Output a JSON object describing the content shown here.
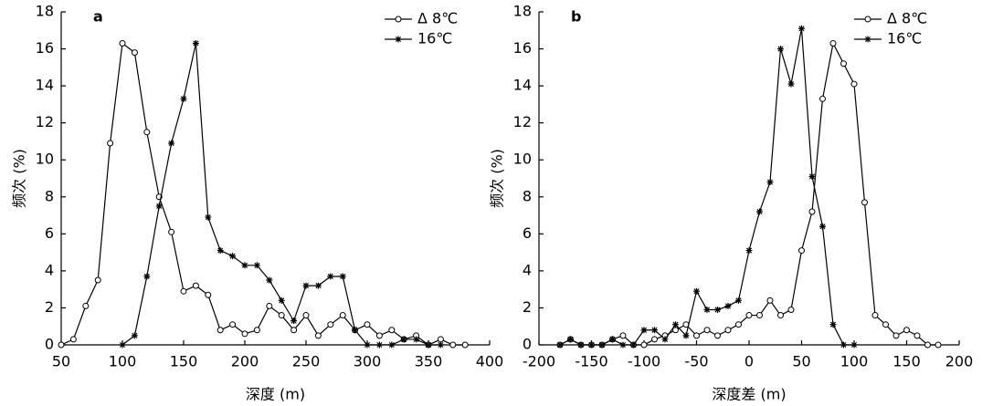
{
  "chart_data": [
    {
      "type": "line",
      "panel_label": "a",
      "xlabel": "深度 (m)",
      "ylabel": "频次 (%)",
      "xlim": [
        50,
        400
      ],
      "xticks": [
        50,
        100,
        150,
        200,
        250,
        300,
        350,
        400
      ],
      "ylim": [
        0,
        18
      ],
      "yticks": [
        0,
        2,
        4,
        6,
        8,
        10,
        12,
        14,
        16,
        18
      ],
      "legend": "upper right",
      "grid": false,
      "series": [
        {
          "name": "Δ 8℃",
          "marker": "circle",
          "color": "#000000",
          "x": [
            50,
            60,
            70,
            80,
            90,
            100,
            110,
            120,
            130,
            140,
            150,
            160,
            170,
            180,
            190,
            200,
            210,
            220,
            230,
            240,
            250,
            260,
            270,
            280,
            290,
            300,
            310,
            320,
            330,
            340,
            350,
            360,
            370,
            380
          ],
          "values": [
            0,
            0.3,
            2.1,
            3.5,
            10.9,
            16.3,
            15.8,
            11.5,
            8.0,
            6.1,
            2.9,
            3.2,
            2.7,
            0.8,
            1.1,
            0.6,
            0.8,
            2.1,
            1.6,
            0.8,
            1.6,
            0.5,
            1.1,
            1.6,
            0.8,
            1.1,
            0.5,
            0.8,
            0.3,
            0.5,
            0,
            0.3,
            0,
            0
          ]
        },
        {
          "name": "16℃",
          "marker": "star",
          "color": "#000000",
          "x": [
            100,
            110,
            120,
            130,
            140,
            150,
            160,
            170,
            180,
            190,
            200,
            210,
            220,
            230,
            240,
            250,
            260,
            270,
            280,
            290,
            300,
            310,
            320,
            330,
            340,
            350,
            360
          ],
          "values": [
            0,
            0.5,
            3.7,
            7.5,
            10.9,
            13.3,
            16.3,
            6.9,
            5.1,
            4.8,
            4.3,
            4.3,
            3.5,
            2.4,
            1.3,
            3.2,
            3.2,
            3.7,
            3.7,
            0.8,
            0,
            0,
            0,
            0.3,
            0.3,
            0,
            0
          ]
        }
      ]
    },
    {
      "type": "line",
      "panel_label": "b",
      "xlabel": "深度差 (m)",
      "ylabel": "频次 (%)",
      "xlim": [
        -200,
        200
      ],
      "xticks": [
        -200,
        -150,
        -100,
        -50,
        0,
        50,
        100,
        150,
        200
      ],
      "ylim": [
        0,
        18
      ],
      "yticks": [
        0,
        2,
        4,
        6,
        8,
        10,
        12,
        14,
        16,
        18
      ],
      "legend": "upper right",
      "grid": false,
      "series": [
        {
          "name": "Δ 8℃",
          "marker": "circle",
          "color": "#000000",
          "x": [
            -180,
            -170,
            -160,
            -150,
            -140,
            -130,
            -120,
            -110,
            -100,
            -90,
            -80,
            -70,
            -60,
            -50,
            -40,
            -30,
            -20,
            -10,
            0,
            10,
            20,
            30,
            40,
            50,
            60,
            70,
            80,
            90,
            100,
            110,
            120,
            130,
            140,
            150,
            160,
            170,
            180
          ],
          "values": [
            0,
            0.3,
            0,
            0,
            0,
            0.3,
            0.5,
            0,
            0,
            0.3,
            0.5,
            0.8,
            1.1,
            0.5,
            0.8,
            0.5,
            0.8,
            1.1,
            1.6,
            1.6,
            2.4,
            1.6,
            1.9,
            5.1,
            7.2,
            13.3,
            16.3,
            15.2,
            14.1,
            7.7,
            1.6,
            1.1,
            0.5,
            0.8,
            0.5,
            0,
            0
          ]
        },
        {
          "name": "16℃",
          "marker": "star",
          "color": "#000000",
          "x": [
            -180,
            -170,
            -160,
            -150,
            -140,
            -130,
            -120,
            -110,
            -100,
            -90,
            -80,
            -70,
            -60,
            -50,
            -40,
            -30,
            -20,
            -10,
            0,
            10,
            20,
            30,
            40,
            50,
            60,
            70,
            80,
            90,
            100
          ],
          "values": [
            0,
            0.3,
            0,
            0,
            0,
            0.3,
            0,
            0,
            0.8,
            0.8,
            0.3,
            1.1,
            0.5,
            2.9,
            1.9,
            1.9,
            2.1,
            2.4,
            5.1,
            7.2,
            8.8,
            16.0,
            14.1,
            17.1,
            9.1,
            6.4,
            1.1,
            0,
            0
          ]
        }
      ]
    }
  ]
}
